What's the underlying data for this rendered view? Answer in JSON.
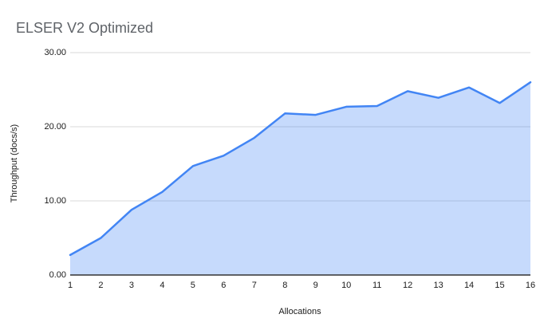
{
  "title": "ELSER V2 Optimized",
  "chart_data": {
    "type": "area",
    "x": [
      1,
      2,
      3,
      4,
      5,
      6,
      7,
      8,
      9,
      10,
      11,
      12,
      13,
      14,
      15,
      16
    ],
    "x_tick_labels": [
      "1",
      "2",
      "3",
      "4",
      "5",
      "6",
      "7",
      "8",
      "9",
      "10",
      "11",
      "12",
      "13",
      "14",
      "15",
      "16"
    ],
    "values": [
      2.7,
      5.0,
      8.8,
      11.2,
      14.7,
      16.1,
      18.5,
      21.8,
      21.6,
      22.7,
      22.8,
      24.8,
      23.9,
      25.3,
      23.2,
      26.0
    ],
    "title": "ELSER V2 Optimized",
    "xlabel": "Allocations",
    "ylabel": "Throughput (docs/s)",
    "ylim": [
      0,
      30
    ],
    "yticks": [
      0,
      10,
      20,
      30
    ],
    "ytick_labels": [
      "0.00",
      "10.00",
      "20.00",
      "30.00"
    ],
    "grid": "horizontal-major",
    "legend": "none"
  },
  "colors": {
    "series_line": "#4285f4",
    "series_fill": "#4285f4",
    "series_fill_opacity": 0.3,
    "gridline": "#d9d9d9",
    "axis_line": "#333333",
    "title_text": "#5f6368",
    "tick_text": "#1a1a1a",
    "background": "#ffffff"
  }
}
